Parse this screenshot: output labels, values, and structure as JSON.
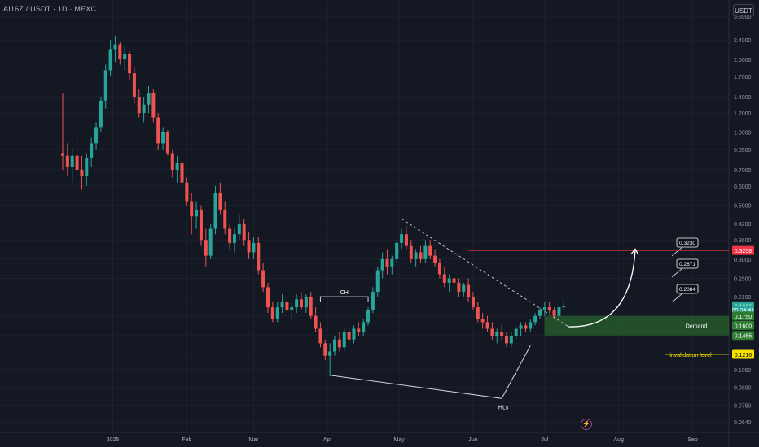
{
  "header": {
    "symbol_line": "AI16Z / USDT · 1D · MEXC"
  },
  "toolbar": {
    "currency_button": "USDT"
  },
  "colors": {
    "up": "#26a69a",
    "down": "#ef5350",
    "bg": "#141823",
    "demand": "#2e7d32",
    "invalidation": "#f5e000",
    "target_line": "#f23645",
    "current_price": "#26a69a"
  },
  "chart_data": {
    "type": "candlestick",
    "scale": "log",
    "x_ticks": [
      "2025",
      "Feb",
      "Mar",
      "Apr",
      "May",
      "Jun",
      "Jul",
      "Aug",
      "Sep"
    ],
    "y_ticks": [
      "3.0000",
      "2.4000",
      "2.0000",
      "1.7000",
      "1.4000",
      "1.2000",
      "1.0000",
      "0.8500",
      "0.7000",
      "0.6000",
      "0.5000",
      "0.4200",
      "0.3600",
      "0.3000",
      "0.2500",
      "0.2100",
      "0.1750",
      "0.1455",
      "0.1216",
      "0.1050",
      "0.0890",
      "0.0750",
      "0.0640"
    ],
    "ylim": [
      0.058,
      3.4
    ],
    "price_badges": [
      {
        "label": "0.3258",
        "value": 0.3258,
        "color": "#f23645"
      },
      {
        "label": "0.1926",
        "value": 0.1926,
        "color": "#26a69a"
      },
      {
        "label": "09:34:41",
        "value": 0.1855,
        "color": "#26a69a"
      },
      {
        "label": "0.1750",
        "value": 0.175,
        "color": "#2e7d32"
      },
      {
        "label": "0.1600",
        "value": 0.16,
        "color": "#2e7d32"
      },
      {
        "label": "0.1455",
        "value": 0.1455,
        "color": "#2e7d32"
      },
      {
        "label": "0.1216",
        "value": 0.1216,
        "color": "#f5e000"
      }
    ],
    "target_labels": [
      "0.3230",
      "0.2671",
      "0.2084"
    ],
    "annotations": {
      "choch": "CH",
      "higher_lows": "HLs",
      "demand": "Demand",
      "invalidation": "invalidation level"
    },
    "demand_zone": [
      0.1455,
      0.175
    ],
    "invalidation_price": 0.1216,
    "target_price": 0.3258,
    "candles": [
      {
        "date": "12-11",
        "o": 0.82,
        "h": 1.45,
        "l": 0.7,
        "c": 0.8
      },
      {
        "date": "12-13",
        "o": 0.8,
        "h": 0.9,
        "l": 0.66,
        "c": 0.72
      },
      {
        "date": "12-15",
        "o": 0.72,
        "h": 0.86,
        "l": 0.62,
        "c": 0.8
      },
      {
        "date": "12-17",
        "o": 0.8,
        "h": 0.95,
        "l": 0.68,
        "c": 0.7
      },
      {
        "date": "12-19",
        "o": 0.7,
        "h": 0.8,
        "l": 0.58,
        "c": 0.66
      },
      {
        "date": "12-21",
        "o": 0.66,
        "h": 0.82,
        "l": 0.6,
        "c": 0.78
      },
      {
        "date": "12-23",
        "o": 0.78,
        "h": 0.95,
        "l": 0.72,
        "c": 0.9
      },
      {
        "date": "12-25",
        "o": 0.9,
        "h": 1.1,
        "l": 0.85,
        "c": 1.05
      },
      {
        "date": "12-27",
        "o": 1.05,
        "h": 1.4,
        "l": 1.0,
        "c": 1.35
      },
      {
        "date": "12-29",
        "o": 1.35,
        "h": 1.9,
        "l": 1.25,
        "c": 1.8
      },
      {
        "date": "12-31",
        "o": 1.8,
        "h": 2.4,
        "l": 1.7,
        "c": 2.2
      },
      {
        "date": "01-02",
        "o": 2.2,
        "h": 2.5,
        "l": 1.95,
        "c": 2.3
      },
      {
        "date": "01-04",
        "o": 2.3,
        "h": 2.35,
        "l": 1.9,
        "c": 2.0
      },
      {
        "date": "01-06",
        "o": 2.0,
        "h": 2.25,
        "l": 1.8,
        "c": 2.1
      },
      {
        "date": "01-08",
        "o": 2.1,
        "h": 2.15,
        "l": 1.65,
        "c": 1.75
      },
      {
        "date": "01-10",
        "o": 1.75,
        "h": 1.85,
        "l": 1.3,
        "c": 1.4
      },
      {
        "date": "01-12",
        "o": 1.4,
        "h": 1.5,
        "l": 1.15,
        "c": 1.2
      },
      {
        "date": "01-14",
        "o": 1.2,
        "h": 1.4,
        "l": 1.1,
        "c": 1.3
      },
      {
        "date": "01-16",
        "o": 1.3,
        "h": 1.55,
        "l": 1.2,
        "c": 1.45
      },
      {
        "date": "01-18",
        "o": 1.45,
        "h": 1.5,
        "l": 1.1,
        "c": 1.15
      },
      {
        "date": "01-20",
        "o": 1.15,
        "h": 1.2,
        "l": 0.85,
        "c": 0.9
      },
      {
        "date": "01-22",
        "o": 0.9,
        "h": 1.05,
        "l": 0.85,
        "c": 1.0
      },
      {
        "date": "01-24",
        "o": 1.0,
        "h": 1.02,
        "l": 0.8,
        "c": 0.82
      },
      {
        "date": "01-26",
        "o": 0.82,
        "h": 0.85,
        "l": 0.65,
        "c": 0.7
      },
      {
        "date": "01-28",
        "o": 0.7,
        "h": 0.8,
        "l": 0.62,
        "c": 0.75
      },
      {
        "date": "01-30",
        "o": 0.75,
        "h": 0.78,
        "l": 0.6,
        "c": 0.62
      },
      {
        "date": "02-01",
        "o": 0.62,
        "h": 0.65,
        "l": 0.5,
        "c": 0.52
      },
      {
        "date": "02-03",
        "o": 0.52,
        "h": 0.56,
        "l": 0.38,
        "c": 0.45
      },
      {
        "date": "02-05",
        "o": 0.45,
        "h": 0.52,
        "l": 0.4,
        "c": 0.48
      },
      {
        "date": "02-07",
        "o": 0.48,
        "h": 0.5,
        "l": 0.34,
        "c": 0.36
      },
      {
        "date": "02-09",
        "o": 0.36,
        "h": 0.4,
        "l": 0.28,
        "c": 0.31
      },
      {
        "date": "02-11",
        "o": 0.31,
        "h": 0.42,
        "l": 0.3,
        "c": 0.4
      },
      {
        "date": "02-13",
        "o": 0.4,
        "h": 0.6,
        "l": 0.38,
        "c": 0.56
      },
      {
        "date": "02-15",
        "o": 0.56,
        "h": 0.62,
        "l": 0.46,
        "c": 0.48
      },
      {
        "date": "02-17",
        "o": 0.48,
        "h": 0.52,
        "l": 0.38,
        "c": 0.4
      },
      {
        "date": "02-19",
        "o": 0.4,
        "h": 0.42,
        "l": 0.33,
        "c": 0.35
      },
      {
        "date": "02-21",
        "o": 0.35,
        "h": 0.4,
        "l": 0.32,
        "c": 0.38
      },
      {
        "date": "02-23",
        "o": 0.38,
        "h": 0.46,
        "l": 0.36,
        "c": 0.42
      },
      {
        "date": "02-25",
        "o": 0.42,
        "h": 0.44,
        "l": 0.34,
        "c": 0.36
      },
      {
        "date": "02-27",
        "o": 0.36,
        "h": 0.39,
        "l": 0.3,
        "c": 0.32
      },
      {
        "date": "03-01",
        "o": 0.32,
        "h": 0.37,
        "l": 0.3,
        "c": 0.35
      },
      {
        "date": "03-03",
        "o": 0.35,
        "h": 0.37,
        "l": 0.26,
        "c": 0.27
      },
      {
        "date": "03-05",
        "o": 0.27,
        "h": 0.29,
        "l": 0.22,
        "c": 0.23
      },
      {
        "date": "03-07",
        "o": 0.23,
        "h": 0.24,
        "l": 0.18,
        "c": 0.19
      },
      {
        "date": "03-09",
        "o": 0.19,
        "h": 0.2,
        "l": 0.165,
        "c": 0.17
      },
      {
        "date": "03-11",
        "o": 0.17,
        "h": 0.2,
        "l": 0.165,
        "c": 0.19
      },
      {
        "date": "03-13",
        "o": 0.19,
        "h": 0.215,
        "l": 0.18,
        "c": 0.2
      },
      {
        "date": "03-15",
        "o": 0.2,
        "h": 0.21,
        "l": 0.18,
        "c": 0.185
      },
      {
        "date": "03-17",
        "o": 0.185,
        "h": 0.2,
        "l": 0.17,
        "c": 0.19
      },
      {
        "date": "03-19",
        "o": 0.19,
        "h": 0.215,
        "l": 0.18,
        "c": 0.205
      },
      {
        "date": "03-21",
        "o": 0.205,
        "h": 0.22,
        "l": 0.185,
        "c": 0.19
      },
      {
        "date": "03-23",
        "o": 0.19,
        "h": 0.215,
        "l": 0.18,
        "c": 0.21
      },
      {
        "date": "03-25",
        "o": 0.21,
        "h": 0.22,
        "l": 0.17,
        "c": 0.175
      },
      {
        "date": "03-27",
        "o": 0.175,
        "h": 0.19,
        "l": 0.15,
        "c": 0.155
      },
      {
        "date": "03-29",
        "o": 0.155,
        "h": 0.165,
        "l": 0.13,
        "c": 0.135
      },
      {
        "date": "03-31",
        "o": 0.135,
        "h": 0.14,
        "l": 0.115,
        "c": 0.12
      },
      {
        "date": "04-02",
        "o": 0.12,
        "h": 0.135,
        "l": 0.1,
        "c": 0.125
      },
      {
        "date": "04-04",
        "o": 0.125,
        "h": 0.145,
        "l": 0.12,
        "c": 0.14
      },
      {
        "date": "04-06",
        "o": 0.14,
        "h": 0.15,
        "l": 0.125,
        "c": 0.13
      },
      {
        "date": "04-08",
        "o": 0.13,
        "h": 0.155,
        "l": 0.125,
        "c": 0.15
      },
      {
        "date": "04-10",
        "o": 0.15,
        "h": 0.16,
        "l": 0.135,
        "c": 0.14
      },
      {
        "date": "04-12",
        "o": 0.14,
        "h": 0.16,
        "l": 0.135,
        "c": 0.155
      },
      {
        "date": "04-14",
        "o": 0.155,
        "h": 0.165,
        "l": 0.145,
        "c": 0.15
      },
      {
        "date": "04-16",
        "o": 0.15,
        "h": 0.17,
        "l": 0.145,
        "c": 0.165
      },
      {
        "date": "04-18",
        "o": 0.165,
        "h": 0.19,
        "l": 0.16,
        "c": 0.185
      },
      {
        "date": "04-20",
        "o": 0.185,
        "h": 0.23,
        "l": 0.18,
        "c": 0.22
      },
      {
        "date": "04-22",
        "o": 0.22,
        "h": 0.28,
        "l": 0.21,
        "c": 0.27
      },
      {
        "date": "04-24",
        "o": 0.27,
        "h": 0.32,
        "l": 0.25,
        "c": 0.3
      },
      {
        "date": "04-26",
        "o": 0.3,
        "h": 0.33,
        "l": 0.26,
        "c": 0.28
      },
      {
        "date": "04-28",
        "o": 0.28,
        "h": 0.31,
        "l": 0.26,
        "c": 0.3
      },
      {
        "date": "04-30",
        "o": 0.3,
        "h": 0.36,
        "l": 0.29,
        "c": 0.35
      },
      {
        "date": "05-02",
        "o": 0.35,
        "h": 0.4,
        "l": 0.33,
        "c": 0.38
      },
      {
        "date": "05-04",
        "o": 0.38,
        "h": 0.41,
        "l": 0.33,
        "c": 0.34
      },
      {
        "date": "05-06",
        "o": 0.34,
        "h": 0.36,
        "l": 0.29,
        "c": 0.3
      },
      {
        "date": "05-08",
        "o": 0.3,
        "h": 0.33,
        "l": 0.28,
        "c": 0.32
      },
      {
        "date": "05-10",
        "o": 0.32,
        "h": 0.34,
        "l": 0.29,
        "c": 0.3
      },
      {
        "date": "05-12",
        "o": 0.3,
        "h": 0.36,
        "l": 0.29,
        "c": 0.34
      },
      {
        "date": "05-14",
        "o": 0.34,
        "h": 0.36,
        "l": 0.3,
        "c": 0.31
      },
      {
        "date": "05-16",
        "o": 0.31,
        "h": 0.33,
        "l": 0.28,
        "c": 0.29
      },
      {
        "date": "05-18",
        "o": 0.29,
        "h": 0.3,
        "l": 0.25,
        "c": 0.26
      },
      {
        "date": "05-20",
        "o": 0.26,
        "h": 0.28,
        "l": 0.23,
        "c": 0.24
      },
      {
        "date": "05-22",
        "o": 0.24,
        "h": 0.26,
        "l": 0.22,
        "c": 0.25
      },
      {
        "date": "05-24",
        "o": 0.25,
        "h": 0.27,
        "l": 0.23,
        "c": 0.24
      },
      {
        "date": "05-26",
        "o": 0.24,
        "h": 0.25,
        "l": 0.21,
        "c": 0.22
      },
      {
        "date": "05-28",
        "o": 0.22,
        "h": 0.24,
        "l": 0.21,
        "c": 0.235
      },
      {
        "date": "05-30",
        "o": 0.235,
        "h": 0.25,
        "l": 0.2,
        "c": 0.21
      },
      {
        "date": "06-01",
        "o": 0.21,
        "h": 0.22,
        "l": 0.185,
        "c": 0.19
      },
      {
        "date": "06-03",
        "o": 0.19,
        "h": 0.2,
        "l": 0.165,
        "c": 0.17
      },
      {
        "date": "06-05",
        "o": 0.17,
        "h": 0.18,
        "l": 0.155,
        "c": 0.165
      },
      {
        "date": "06-07",
        "o": 0.165,
        "h": 0.175,
        "l": 0.15,
        "c": 0.155
      },
      {
        "date": "06-09",
        "o": 0.155,
        "h": 0.165,
        "l": 0.14,
        "c": 0.145
      },
      {
        "date": "06-11",
        "o": 0.145,
        "h": 0.155,
        "l": 0.135,
        "c": 0.15
      },
      {
        "date": "06-13",
        "o": 0.15,
        "h": 0.16,
        "l": 0.14,
        "c": 0.145
      },
      {
        "date": "06-15",
        "o": 0.145,
        "h": 0.15,
        "l": 0.13,
        "c": 0.135
      },
      {
        "date": "06-17",
        "o": 0.135,
        "h": 0.15,
        "l": 0.13,
        "c": 0.145
      },
      {
        "date": "06-19",
        "o": 0.145,
        "h": 0.16,
        "l": 0.14,
        "c": 0.155
      },
      {
        "date": "06-21",
        "o": 0.155,
        "h": 0.165,
        "l": 0.145,
        "c": 0.16
      },
      {
        "date": "06-23",
        "o": 0.16,
        "h": 0.165,
        "l": 0.15,
        "c": 0.155
      },
      {
        "date": "06-25",
        "o": 0.155,
        "h": 0.17,
        "l": 0.15,
        "c": 0.165
      },
      {
        "date": "06-27",
        "o": 0.165,
        "h": 0.18,
        "l": 0.16,
        "c": 0.175
      },
      {
        "date": "06-29",
        "o": 0.175,
        "h": 0.19,
        "l": 0.17,
        "c": 0.185
      },
      {
        "date": "07-01",
        "o": 0.185,
        "h": 0.2,
        "l": 0.175,
        "c": 0.19
      },
      {
        "date": "07-03",
        "o": 0.19,
        "h": 0.2,
        "l": 0.18,
        "c": 0.185
      },
      {
        "date": "07-05",
        "o": 0.185,
        "h": 0.19,
        "l": 0.17,
        "c": 0.175
      },
      {
        "date": "07-07",
        "o": 0.175,
        "h": 0.195,
        "l": 0.17,
        "c": 0.19
      },
      {
        "date": "07-09",
        "o": 0.19,
        "h": 0.205,
        "l": 0.185,
        "c": 0.1926
      }
    ]
  }
}
